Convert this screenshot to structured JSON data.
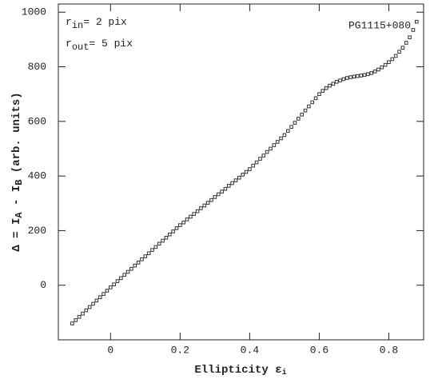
{
  "chart_data": {
    "type": "scatter",
    "x_label_parts": [
      "Ellipticity ε",
      "i"
    ],
    "y_label_parts": [
      "Δ = I",
      "A",
      " - I",
      "B",
      " (arb. units)"
    ],
    "annotations": {
      "r_in": [
        "r",
        "in",
        "= 2 pix"
      ],
      "r_out": [
        "r",
        "out",
        "= 5 pix"
      ],
      "object": "PG1115+080"
    },
    "color": "#333333",
    "xlim": [
      -0.15,
      0.9
    ],
    "ylim": [
      -200,
      1030
    ],
    "xticks": [
      0,
      0.2,
      0.4,
      0.6,
      0.8
    ],
    "yticks": [
      0,
      200,
      400,
      600,
      800,
      1000
    ],
    "x": [
      -0.11,
      -0.1,
      -0.09,
      -0.08,
      -0.07,
      -0.06,
      -0.05,
      -0.04,
      -0.03,
      -0.02,
      -0.01,
      0,
      0.01,
      0.02,
      0.03,
      0.04,
      0.05,
      0.06,
      0.07,
      0.08,
      0.09,
      0.1,
      0.11,
      0.12,
      0.13,
      0.14,
      0.15,
      0.16,
      0.17,
      0.18,
      0.19,
      0.2,
      0.21,
      0.22,
      0.23,
      0.24,
      0.25,
      0.26,
      0.27,
      0.28,
      0.29,
      0.3,
      0.31,
      0.32,
      0.33,
      0.34,
      0.35,
      0.36,
      0.37,
      0.38,
      0.39,
      0.4,
      0.41,
      0.42,
      0.43,
      0.44,
      0.45,
      0.46,
      0.47,
      0.48,
      0.49,
      0.5,
      0.51,
      0.52,
      0.53,
      0.54,
      0.55,
      0.56,
      0.57,
      0.58,
      0.59,
      0.6,
      0.61,
      0.62,
      0.63,
      0.64,
      0.65,
      0.66,
      0.67,
      0.68,
      0.69,
      0.7,
      0.71,
      0.72,
      0.73,
      0.74,
      0.75,
      0.76,
      0.77,
      0.78,
      0.79,
      0.8,
      0.81,
      0.82,
      0.83,
      0.84,
      0.85,
      0.86,
      0.87,
      0.88
    ],
    "values": [
      -140,
      -128,
      -116,
      -104,
      -92,
      -80,
      -68,
      -56,
      -44,
      -32,
      -20,
      -8,
      3,
      15,
      26,
      38,
      49,
      60,
      72,
      83,
      95,
      106,
      117,
      129,
      140,
      152,
      163,
      174,
      186,
      197,
      209,
      220,
      230,
      241,
      251,
      261,
      271,
      282,
      292,
      302,
      312,
      323,
      333,
      343,
      353,
      364,
      374,
      384,
      394,
      405,
      415,
      425,
      438,
      450,
      463,
      475,
      488,
      500,
      513,
      525,
      538,
      550,
      565,
      580,
      595,
      610,
      625,
      640,
      655,
      670,
      685,
      700,
      712,
      722,
      731,
      738,
      745,
      750,
      755,
      759,
      762,
      764,
      766,
      768,
      770,
      773,
      777,
      783,
      790,
      798,
      807,
      817,
      828,
      840,
      855,
      870,
      888,
      908,
      935,
      965
    ]
  }
}
